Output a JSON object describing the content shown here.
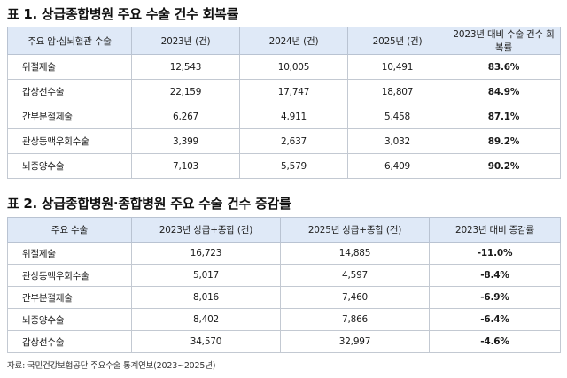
{
  "table1": {
    "title": "표 1. 상급종합병원 주요 수술 건수 회복률",
    "headers": [
      "주요 암·심뇌혈관 수술",
      "2023년 (건)",
      "2024년 (건)",
      "2025년 (건)",
      "2023년 대비 수술 건수 회복률"
    ],
    "rows": [
      [
        "위절제술",
        "12,543",
        "10,005",
        "10,491",
        "83.6%"
      ],
      [
        "갑상선수술",
        "22,159",
        "17,747",
        "18,807",
        "84.9%"
      ],
      [
        "간부분절제술",
        "6,267",
        "4,911",
        "5,458",
        "87.1%"
      ],
      [
        "관상동맥우회수술",
        "3,399",
        "2,637",
        "3,032",
        "89.2%"
      ],
      [
        "뇌종양수술",
        "7,103",
        "5,579",
        "6,409",
        "90.2%"
      ]
    ]
  },
  "table2": {
    "title": "표 2. 상급종합병원·종합병원 주요 수술 건수 증감률",
    "headers": [
      "주요 수술",
      "2023년 상급+종합 (건)",
      "2025년 상급+종합 (건)",
      "2023년 대비 증감률"
    ],
    "rows": [
      [
        "위절제술",
        "16,723",
        "14,885",
        "-11.0%"
      ],
      [
        "관상동맥우회수술",
        "5,017",
        "4,597",
        "-8.4%"
      ],
      [
        "간부분절제술",
        "8,016",
        "7,460",
        "-6.9%"
      ],
      [
        "뇌종양수술",
        "8,402",
        "7,866",
        "-6.4%"
      ],
      [
        "갑상선수술",
        "34,570",
        "32,997",
        "-4.6%"
      ]
    ]
  },
  "source": "자료: 국민건강보험공단 주요수술 통계연보(2023~2025년)"
}
